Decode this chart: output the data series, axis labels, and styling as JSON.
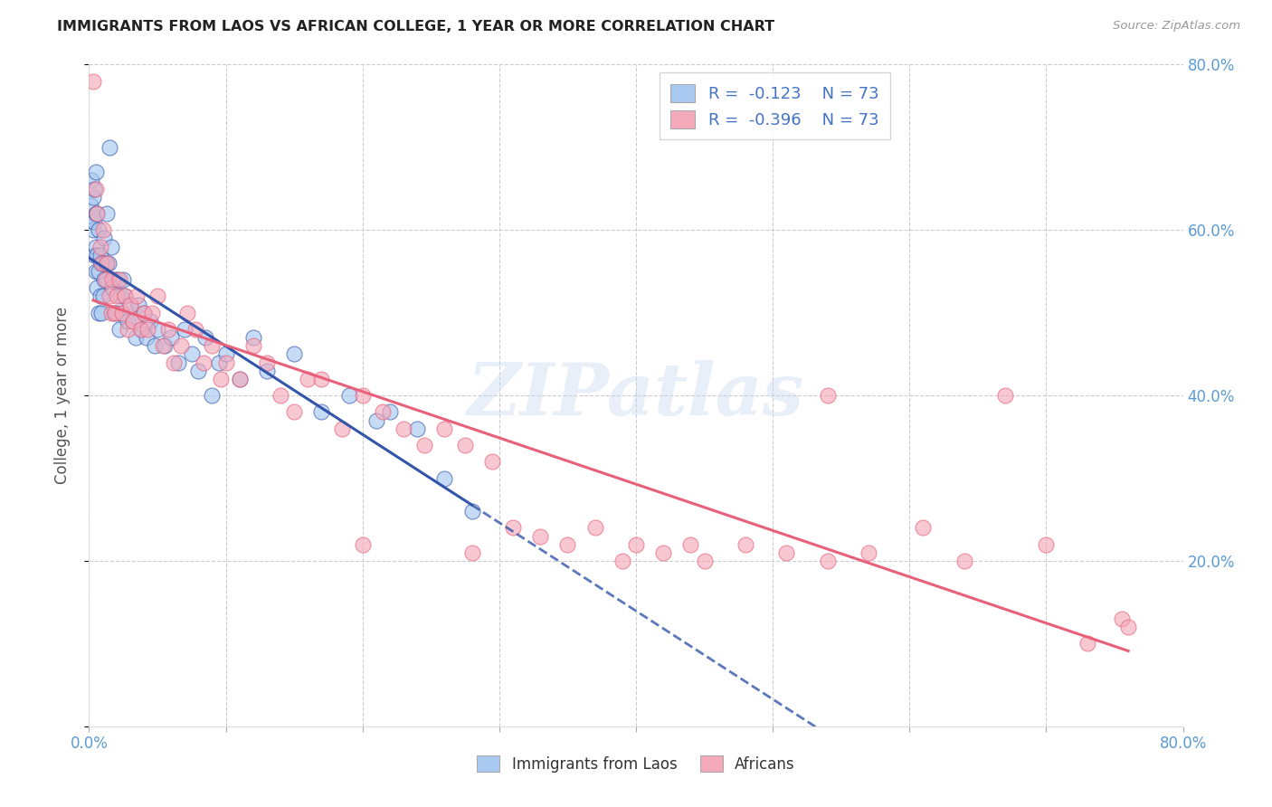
{
  "title": "IMMIGRANTS FROM LAOS VS AFRICAN COLLEGE, 1 YEAR OR MORE CORRELATION CHART",
  "source": "Source: ZipAtlas.com",
  "ylabel": "College, 1 year or more",
  "xlim": [
    0.0,
    0.8
  ],
  "ylim": [
    0.0,
    0.8
  ],
  "x_ticks": [
    0.0,
    0.1,
    0.2,
    0.3,
    0.4,
    0.5,
    0.6,
    0.7,
    0.8
  ],
  "y_ticks": [
    0.0,
    0.2,
    0.4,
    0.6,
    0.8
  ],
  "legend_label1": "Immigrants from Laos",
  "legend_label2": "Africans",
  "color_laos": "#A8C8F0",
  "color_africans": "#F4AABB",
  "color_line_laos": "#3355AA",
  "color_line_africans": "#E8607A",
  "watermark": "ZIPatlas",
  "laos_x": [
    0.001,
    0.002,
    0.002,
    0.003,
    0.003,
    0.004,
    0.004,
    0.004,
    0.005,
    0.005,
    0.005,
    0.005,
    0.006,
    0.006,
    0.006,
    0.007,
    0.007,
    0.007,
    0.008,
    0.008,
    0.009,
    0.009,
    0.01,
    0.01,
    0.011,
    0.011,
    0.012,
    0.013,
    0.014,
    0.015,
    0.016,
    0.017,
    0.018,
    0.019,
    0.02,
    0.021,
    0.022,
    0.023,
    0.024,
    0.025,
    0.026,
    0.028,
    0.03,
    0.032,
    0.034,
    0.036,
    0.038,
    0.04,
    0.042,
    0.045,
    0.048,
    0.05,
    0.055,
    0.06,
    0.065,
    0.07,
    0.075,
    0.08,
    0.085,
    0.09,
    0.095,
    0.1,
    0.11,
    0.12,
    0.13,
    0.15,
    0.17,
    0.19,
    0.21,
    0.22,
    0.24,
    0.26,
    0.28
  ],
  "laos_y": [
    0.63,
    0.61,
    0.66,
    0.6,
    0.64,
    0.57,
    0.61,
    0.65,
    0.55,
    0.58,
    0.62,
    0.67,
    0.53,
    0.57,
    0.62,
    0.5,
    0.55,
    0.6,
    0.52,
    0.57,
    0.5,
    0.56,
    0.52,
    0.56,
    0.54,
    0.59,
    0.56,
    0.62,
    0.56,
    0.7,
    0.58,
    0.53,
    0.5,
    0.54,
    0.5,
    0.54,
    0.48,
    0.52,
    0.5,
    0.54,
    0.52,
    0.49,
    0.51,
    0.49,
    0.47,
    0.51,
    0.48,
    0.5,
    0.47,
    0.49,
    0.46,
    0.48,
    0.46,
    0.47,
    0.44,
    0.48,
    0.45,
    0.43,
    0.47,
    0.4,
    0.44,
    0.45,
    0.42,
    0.47,
    0.43,
    0.45,
    0.38,
    0.4,
    0.37,
    0.38,
    0.36,
    0.3,
    0.26
  ],
  "africans_x": [
    0.003,
    0.005,
    0.006,
    0.008,
    0.009,
    0.01,
    0.012,
    0.013,
    0.015,
    0.016,
    0.017,
    0.019,
    0.02,
    0.022,
    0.024,
    0.026,
    0.028,
    0.03,
    0.032,
    0.035,
    0.038,
    0.04,
    0.043,
    0.046,
    0.05,
    0.054,
    0.058,
    0.062,
    0.067,
    0.072,
    0.078,
    0.084,
    0.09,
    0.096,
    0.1,
    0.11,
    0.12,
    0.13,
    0.14,
    0.15,
    0.16,
    0.17,
    0.185,
    0.2,
    0.215,
    0.23,
    0.245,
    0.26,
    0.275,
    0.295,
    0.31,
    0.33,
    0.35,
    0.37,
    0.4,
    0.42,
    0.45,
    0.48,
    0.51,
    0.54,
    0.57,
    0.61,
    0.64,
    0.67,
    0.7,
    0.73,
    0.755,
    0.54,
    0.44,
    0.39,
    0.28,
    0.2,
    0.76
  ],
  "africans_y": [
    0.78,
    0.65,
    0.62,
    0.58,
    0.56,
    0.6,
    0.54,
    0.56,
    0.52,
    0.5,
    0.54,
    0.5,
    0.52,
    0.54,
    0.5,
    0.52,
    0.48,
    0.51,
    0.49,
    0.52,
    0.48,
    0.5,
    0.48,
    0.5,
    0.52,
    0.46,
    0.48,
    0.44,
    0.46,
    0.5,
    0.48,
    0.44,
    0.46,
    0.42,
    0.44,
    0.42,
    0.46,
    0.44,
    0.4,
    0.38,
    0.42,
    0.42,
    0.36,
    0.4,
    0.38,
    0.36,
    0.34,
    0.36,
    0.34,
    0.32,
    0.24,
    0.23,
    0.22,
    0.24,
    0.22,
    0.21,
    0.2,
    0.22,
    0.21,
    0.2,
    0.21,
    0.24,
    0.2,
    0.4,
    0.22,
    0.1,
    0.13,
    0.4,
    0.22,
    0.2,
    0.21,
    0.22,
    0.12
  ]
}
